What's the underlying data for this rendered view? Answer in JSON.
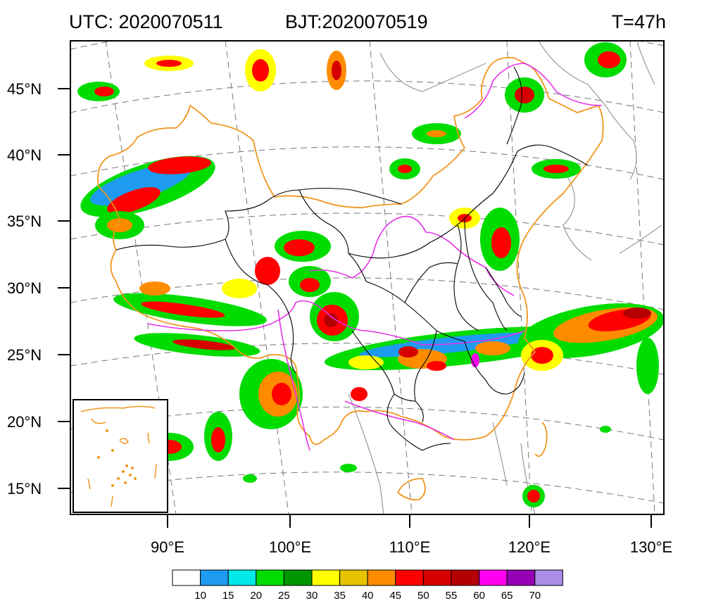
{
  "header": {
    "utc": "UTC: 2020070511",
    "bjt": "BJT:2020070519",
    "lead": "T=47h"
  },
  "axes": {
    "lat_labels": [
      "45°N",
      "40°N",
      "35°N",
      "30°N",
      "25°N",
      "20°N",
      "15°N"
    ],
    "lon_labels": [
      "90°E",
      "100°E",
      "110°E",
      "120°E",
      "130°E"
    ]
  },
  "colorbar": {
    "colors": [
      "#ffffff",
      "#1e9bf0",
      "#00e8e8",
      "#00dc00",
      "#009600",
      "#ffff00",
      "#e6c300",
      "#ff8c00",
      "#ff0000",
      "#d60000",
      "#b40000",
      "#ff00f0",
      "#9600b4",
      "#aa8ce6"
    ],
    "ticks": [
      "10",
      "15",
      "20",
      "25",
      "30",
      "35",
      "40",
      "45",
      "50",
      "55",
      "60",
      "65",
      "70"
    ]
  },
  "colors": {
    "border_national": "#f0961e",
    "border_province": "#000000",
    "river": "#e632e6",
    "coastline": "#9a9a9a",
    "graticule": "#777777"
  }
}
